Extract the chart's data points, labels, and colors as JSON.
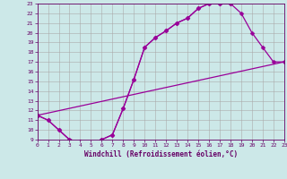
{
  "xlabel": "Windchill (Refroidissement éolien,°C)",
  "bg_color": "#cce8e8",
  "grid_color": "#aaaaaa",
  "line_color": "#990099",
  "xlim": [
    0,
    23
  ],
  "ylim": [
    9,
    23
  ],
  "xticks": [
    0,
    1,
    2,
    3,
    4,
    5,
    6,
    7,
    8,
    9,
    10,
    11,
    12,
    13,
    14,
    15,
    16,
    17,
    18,
    19,
    20,
    21,
    22,
    23
  ],
  "yticks": [
    9,
    10,
    11,
    12,
    13,
    14,
    15,
    16,
    17,
    18,
    19,
    20,
    21,
    22,
    23
  ],
  "line1_x": [
    0,
    1,
    2,
    3,
    4,
    5,
    6,
    7,
    8,
    9,
    10,
    11,
    12,
    13,
    14,
    15,
    16,
    17,
    18
  ],
  "line1_y": [
    11.5,
    11.0,
    10.0,
    9.0,
    8.8,
    8.6,
    9.0,
    9.5,
    12.2,
    15.2,
    18.5,
    19.5,
    20.2,
    21.0,
    21.5,
    22.5,
    23.0,
    23.0,
    23.0
  ],
  "line2_x": [
    0,
    23
  ],
  "line2_y": [
    11.5,
    17.0
  ],
  "line3_x": [
    0,
    1,
    2,
    3,
    4,
    5,
    6,
    7,
    8,
    9,
    10,
    11,
    12,
    13,
    14,
    15,
    16,
    17,
    18,
    19,
    20,
    21,
    22,
    23
  ],
  "line3_y": [
    11.5,
    11.0,
    10.0,
    9.0,
    8.8,
    8.6,
    9.0,
    9.5,
    12.2,
    15.2,
    18.5,
    19.5,
    20.2,
    21.0,
    21.5,
    22.5,
    23.0,
    23.0,
    23.0,
    22.0,
    20.0,
    18.5,
    17.0,
    17.0
  ]
}
